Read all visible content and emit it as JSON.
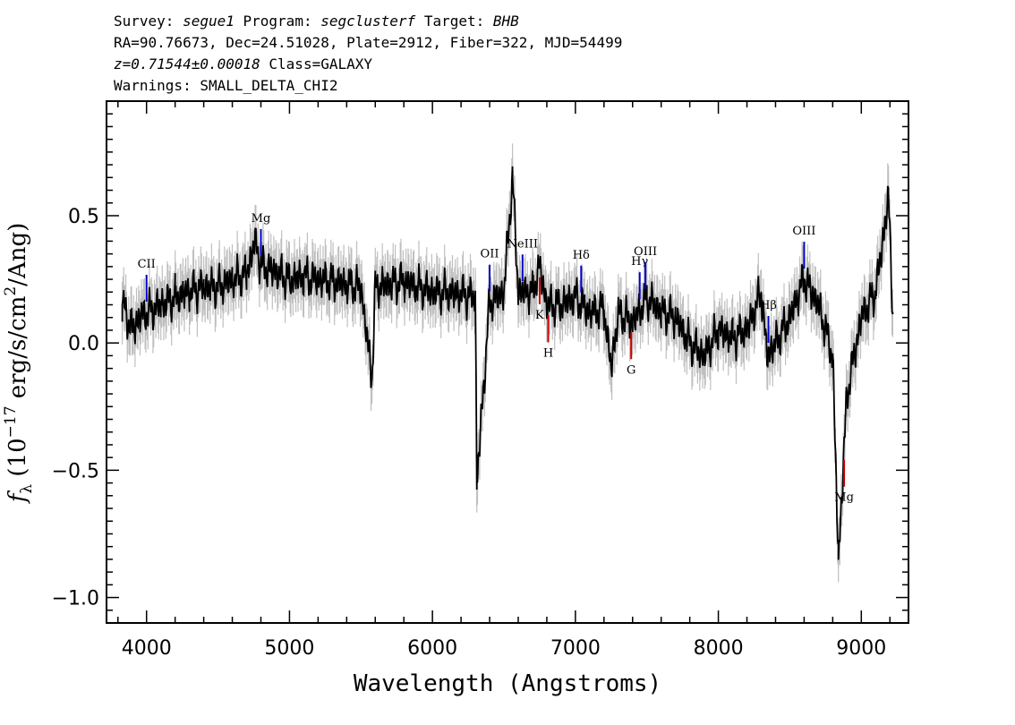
{
  "header": {
    "survey_label": "Survey:",
    "survey": "segue1",
    "program_label": "Program:",
    "program": "segclusterf",
    "target_label": "Target:",
    "target": "BHB",
    "line2": "RA=90.76673, Dec=24.51028, Plate=2912, Fiber=322, MJD=54499",
    "redshift": "z=0.71544±0.00018",
    "class_text": "Class=GALAXY",
    "warnings": "Warnings: SMALL_DELTA_CHI2"
  },
  "chart_data": {
    "type": "line",
    "xlabel": "Wavelength (Angstroms)",
    "ylabel": "f_λ (10^-17 erg/s/cm²/Ang)",
    "xlim": [
      3720,
      9330
    ],
    "ylim": [
      -1.1,
      0.95
    ],
    "x_ticks": [
      4000,
      5000,
      6000,
      7000,
      8000,
      9000
    ],
    "x_tick_labels": [
      "4000",
      "5000",
      "6000",
      "7000",
      "8000",
      "9000"
    ],
    "y_ticks": [
      -1.0,
      -0.5,
      0.0,
      0.5
    ],
    "y_tick_labels": [
      "−1.0",
      "−0.5",
      "0.0",
      "0.5"
    ],
    "grid": false,
    "series": [
      {
        "color": "#000000",
        "x": [
          3830,
          3900,
          3950,
          4000,
          4100,
          4200,
          4300,
          4400,
          4500,
          4600,
          4700,
          4760,
          4800,
          4900,
          5000,
          5100,
          5200,
          5300,
          5400,
          5500,
          5577,
          5600,
          5700,
          5800,
          5900,
          6000,
          6100,
          6200,
          6300,
          6310,
          6400,
          6500,
          6560,
          6600,
          6700,
          6750,
          6800,
          6900,
          7000,
          7100,
          7200,
          7250,
          7300,
          7400,
          7500,
          7600,
          7700,
          7800,
          7900,
          8000,
          8100,
          8200,
          8300,
          8340,
          8400,
          8500,
          8600,
          8700,
          8800,
          8840,
          8900,
          9000,
          9100,
          9150,
          9190,
          9220
        ],
        "y": [
          0.15,
          0.05,
          0.1,
          0.12,
          0.15,
          0.18,
          0.2,
          0.22,
          0.22,
          0.25,
          0.27,
          0.4,
          0.3,
          0.28,
          0.25,
          0.26,
          0.25,
          0.24,
          0.23,
          0.22,
          -0.14,
          0.22,
          0.23,
          0.24,
          0.22,
          0.2,
          0.2,
          0.19,
          0.18,
          -0.55,
          0.16,
          0.2,
          0.65,
          0.2,
          0.2,
          0.3,
          0.15,
          0.15,
          0.18,
          0.12,
          0.13,
          -0.1,
          0.12,
          0.08,
          0.18,
          0.12,
          0.1,
          0.0,
          -0.05,
          0.05,
          0.02,
          0.05,
          0.2,
          -0.05,
          0.0,
          0.1,
          0.25,
          0.15,
          -0.05,
          -0.85,
          -0.2,
          0.1,
          0.2,
          0.4,
          0.58,
          0.12
        ]
      },
      {
        "color": "#bfbfbf",
        "band": 0.09
      }
    ],
    "annotations": [
      {
        "label": "CII",
        "x": 4000,
        "color": "#0000cc",
        "position": "above"
      },
      {
        "label": "Mg",
        "x": 4800,
        "color": "#0000cc",
        "position": "above"
      },
      {
        "label": "OII",
        "x": 6400,
        "color": "#0000cc",
        "position": "above"
      },
      {
        "label": "NeIII",
        "x": 6630,
        "color": "#0000cc",
        "position": "above"
      },
      {
        "label": "Hδ",
        "x": 7040,
        "color": "#0000cc",
        "position": "above"
      },
      {
        "label": "Hγ",
        "x": 7450,
        "color": "#0000cc",
        "position": "above"
      },
      {
        "label": "OIII",
        "x": 7490,
        "color": "#0000cc",
        "position": "above"
      },
      {
        "label": "Hβ",
        "x": 8350,
        "color": "#0000cc",
        "position": "above"
      },
      {
        "label": "OIII",
        "x": 8600,
        "color": "#0000cc",
        "position": "above"
      },
      {
        "label": "K",
        "x": 6750,
        "color": "#cc0000",
        "position": "below"
      },
      {
        "label": "H",
        "x": 6810,
        "color": "#cc0000",
        "position": "below"
      },
      {
        "label": "G",
        "x": 7390,
        "color": "#cc0000",
        "position": "below"
      },
      {
        "label": "Mg",
        "x": 8880,
        "color": "#cc0000",
        "position": "below"
      }
    ]
  }
}
